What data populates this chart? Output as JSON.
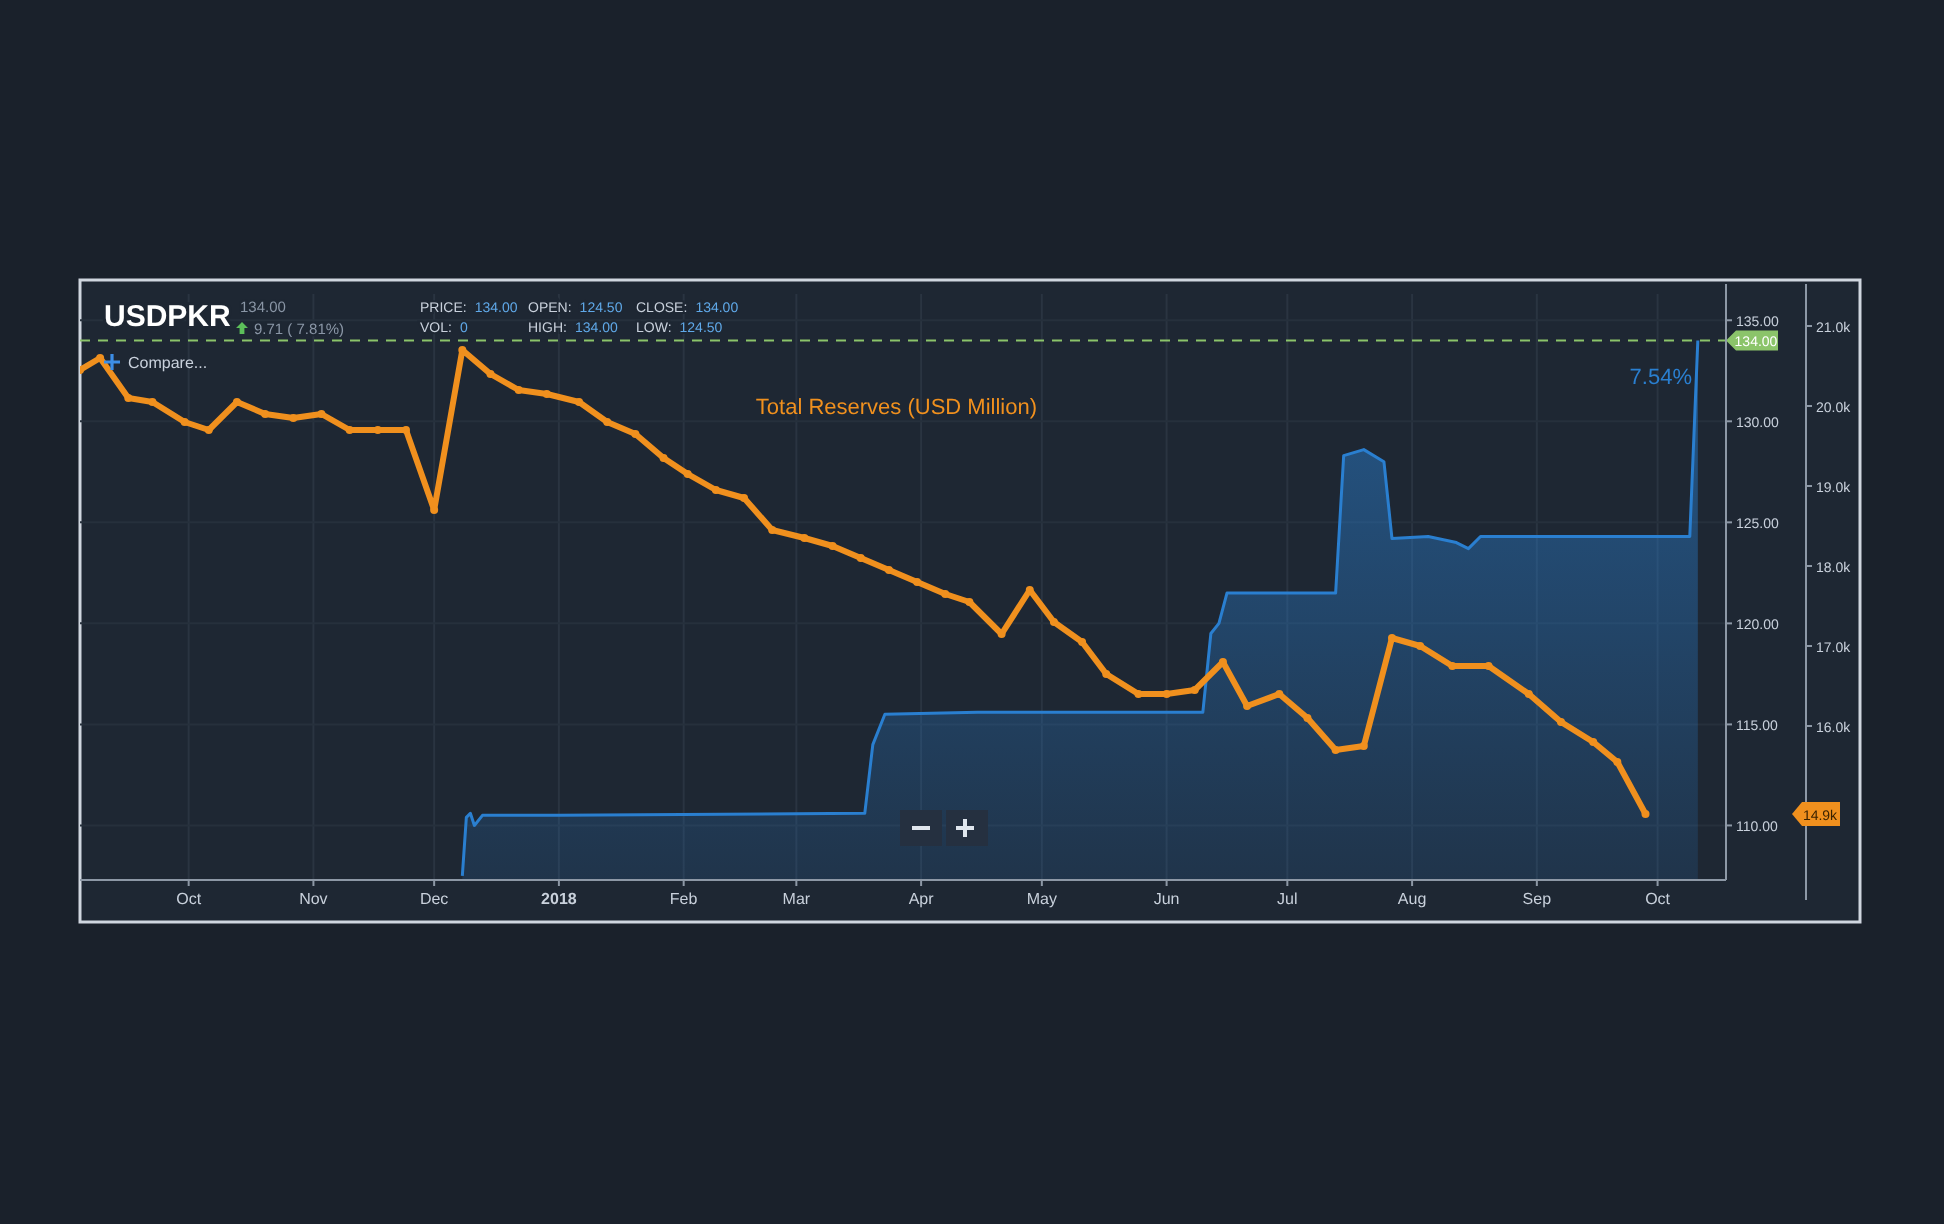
{
  "chart_data": {
    "type": "line",
    "title": "USDPKR",
    "annotations": [
      "134.00",
      "9.71 ( 7.81%)",
      "PRICE: 134.00",
      "VOL: 0",
      "OPEN: 124.50",
      "HIGH: 134.00",
      "CLOSE: 134.00",
      "LOW: 124.50",
      "Compare...",
      "7.54%",
      "14.9k"
    ],
    "xlim": [
      "2017-09-04",
      "2018-10-18"
    ],
    "xticks": [
      {
        "value": "2017-10-01",
        "label": "Oct"
      },
      {
        "value": "2017-11-01",
        "label": "Nov"
      },
      {
        "value": "2017-12-01",
        "label": "Dec"
      },
      {
        "value": "2018-01-01",
        "label": "2018"
      },
      {
        "value": "2018-02-01",
        "label": "Feb"
      },
      {
        "value": "2018-03-01",
        "label": "Mar"
      },
      {
        "value": "2018-04-01",
        "label": "Apr"
      },
      {
        "value": "2018-05-01",
        "label": "May"
      },
      {
        "value": "2018-06-01",
        "label": "Jun"
      },
      {
        "value": "2018-07-01",
        "label": "Jul"
      },
      {
        "value": "2018-08-01",
        "label": "Aug"
      },
      {
        "value": "2018-09-01",
        "label": "Sep"
      },
      {
        "value": "2018-10-01",
        "label": "Oct"
      }
    ],
    "ylim": [
      107.3,
      136.3
    ],
    "yticks": [
      {
        "value": 110,
        "label": "110.00"
      },
      {
        "value": 115,
        "label": "115.00"
      },
      {
        "value": 120,
        "label": "120.00"
      },
      {
        "value": 125,
        "label": "125.00"
      },
      {
        "value": 130,
        "label": "130.00"
      },
      {
        "value": 135,
        "label": "135.00"
      }
    ],
    "y2lim": [
      14075,
      21400
    ],
    "y2ticks": [
      {
        "value": 16000,
        "label": "16.0k"
      },
      {
        "value": 17000,
        "label": "17.0k"
      },
      {
        "value": 18000,
        "label": "18.0k"
      },
      {
        "value": 19000,
        "label": "19.0k"
      },
      {
        "value": 20000,
        "label": "20.0k"
      },
      {
        "value": 21000,
        "label": "21.0k"
      }
    ],
    "grid": true,
    "legend": false,
    "ref_lines": [
      {
        "axis": "y",
        "value": 134,
        "label": "134.00",
        "color": "#8bc46a",
        "line_style": "dashed"
      }
    ],
    "series": [
      {
        "type": "area",
        "color": "#2a7fd0",
        "marker": "none",
        "x": [
          "2017-12-08",
          "2017-12-09",
          "2017-12-10",
          "2017-12-11",
          "2017-12-13",
          "2018-01-01",
          "2018-03-18",
          "2018-03-20",
          "2018-03-23",
          "2018-04-15",
          "2018-06-10",
          "2018-06-12",
          "2018-06-14",
          "2018-06-16",
          "2018-07-13",
          "2018-07-15",
          "2018-07-20",
          "2018-07-25",
          "2018-07-27",
          "2018-08-05",
          "2018-08-12",
          "2018-08-15",
          "2018-08-18",
          "2018-10-09",
          "2018-10-11"
        ],
        "values": [
          107.5,
          110.4,
          110.6,
          110.0,
          110.5,
          110.5,
          110.6,
          114.0,
          115.5,
          115.6,
          115.6,
          119.5,
          120.0,
          121.5,
          121.5,
          128.3,
          128.6,
          128.0,
          124.2,
          124.3,
          124.0,
          123.7,
          124.3,
          124.3,
          134.0
        ]
      },
      {
        "name": "Total Reserves (USD Million)",
        "color": "#f0901e",
        "axis": "y2",
        "marker": "circle",
        "x": [
          "2017-09-04",
          "2017-09-09",
          "2017-09-16",
          "2017-09-22",
          "2017-09-30",
          "2017-10-06",
          "2017-10-13",
          "2017-10-20",
          "2017-10-27",
          "2017-11-03",
          "2017-11-10",
          "2017-11-17",
          "2017-11-24",
          "2017-12-01",
          "2017-12-08",
          "2017-12-15",
          "2017-12-22",
          "2017-12-29",
          "2018-01-06",
          "2018-01-13",
          "2018-01-20",
          "2018-01-27",
          "2018-02-02",
          "2018-02-09",
          "2018-02-16",
          "2018-02-23",
          "2018-03-03",
          "2018-03-10",
          "2018-03-17",
          "2018-03-24",
          "2018-03-31",
          "2018-04-07",
          "2018-04-13",
          "2018-04-21",
          "2018-04-28",
          "2018-05-04",
          "2018-05-11",
          "2018-05-17",
          "2018-05-25",
          "2018-06-01",
          "2018-06-08",
          "2018-06-15",
          "2018-06-21",
          "2018-06-29",
          "2018-07-06",
          "2018-07-13",
          "2018-07-20",
          "2018-07-27",
          "2018-08-03",
          "2018-08-11",
          "2018-08-20",
          "2018-08-30",
          "2018-09-07",
          "2018-09-15",
          "2018-09-21",
          "2018-09-28"
        ],
        "values": [
          20450,
          20600,
          20100,
          20050,
          19800,
          19700,
          20050,
          19900,
          19850,
          19900,
          19700,
          19700,
          19700,
          18700,
          20700,
          20400,
          20200,
          20150,
          20050,
          19800,
          19650,
          19350,
          19150,
          18950,
          18850,
          18450,
          18350,
          18250,
          18100,
          17950,
          17800,
          17650,
          17550,
          17150,
          17700,
          17300,
          17050,
          16650,
          16400,
          16400,
          16450,
          16800,
          16250,
          16400,
          16100,
          15700,
          15750,
          17100,
          17000,
          16750,
          16750,
          16400,
          16050,
          15800,
          15550,
          14900
        ]
      }
    ]
  }
}
